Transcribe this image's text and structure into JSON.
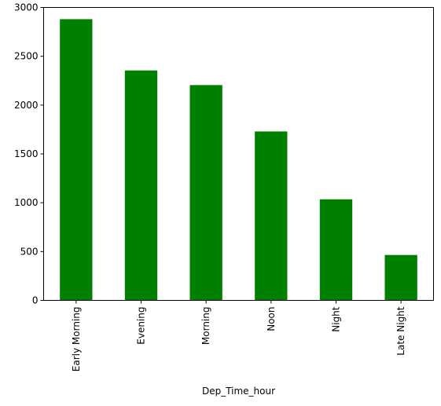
{
  "chart_data": {
    "type": "bar",
    "categories": [
      "Early Morning",
      "Evening",
      "Morning",
      "Noon",
      "Night",
      "Late Night"
    ],
    "values": [
      2880,
      2355,
      2205,
      1730,
      1035,
      465
    ],
    "title": "",
    "xlabel": "Dep_Time_hour",
    "ylabel": "",
    "ylim": [
      0,
      3000
    ],
    "yticks": [
      0,
      500,
      1000,
      1500,
      2000,
      2500,
      3000
    ],
    "grid": false,
    "legend": "none",
    "bar_color": "#008000"
  }
}
